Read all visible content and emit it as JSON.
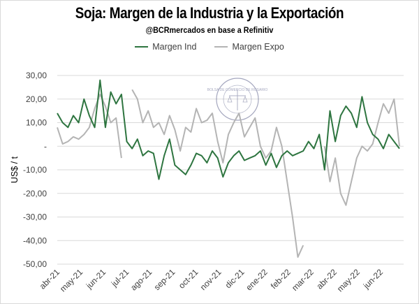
{
  "chart_data": {
    "type": "line",
    "title": "Soja: Margen de la Industria y la Exportación",
    "subtitle": "@BCRmercados en base a Refinitiv",
    "xlabel": "",
    "ylabel": "US$ / t",
    "ylim": [
      -50,
      30
    ],
    "yticks": [
      30,
      20,
      10,
      0,
      -10,
      -20,
      -30,
      -40,
      -50
    ],
    "ytick_labels": [
      "30,00",
      "20,00",
      "10,00",
      "-",
      "-10,00",
      "-20,00",
      "-30,00",
      "-40,00",
      "-50,00"
    ],
    "xtick_labels": [
      "abr-21",
      "may-21",
      "jun-21",
      "jul-21",
      "ago-21",
      "sep-21",
      "oct-21",
      "nov-21",
      "dic-21",
      "ene-22",
      "feb-22",
      "mar-22",
      "abr-22",
      "may-22",
      "jun-22"
    ],
    "x_unit": "week index from start of abr-21",
    "grid": "horizontal",
    "legend_position": "top",
    "watermark": "BOLSA DE COMERCIO DE ROSARIO",
    "series": [
      {
        "name": "Margen Ind",
        "color": "#2e7540",
        "values": [
          14,
          10,
          8,
          13,
          10,
          20,
          13,
          8,
          28,
          8,
          23,
          18,
          22,
          2,
          -1,
          3,
          -4,
          -2,
          -3,
          -14,
          -4,
          3,
          -8,
          -10,
          -12,
          -8,
          -3,
          -4,
          -7,
          -2,
          -5,
          -13,
          -7,
          -4,
          -2,
          -6,
          -5,
          -4,
          -2,
          -8,
          -3,
          -9,
          -4,
          -2,
          -4,
          -3,
          -2,
          2,
          -1,
          5,
          -10,
          15,
          2,
          13,
          17,
          14,
          8,
          21,
          10,
          5,
          3,
          -1,
          5,
          2,
          -1
        ]
      },
      {
        "name": "Margen Expo",
        "color": "#b4b4b4",
        "values": [
          8,
          1,
          2,
          4,
          3,
          5,
          8,
          16,
          22,
          17,
          10,
          12,
          -5,
          null,
          24,
          20,
          10,
          15,
          8,
          10,
          5,
          13,
          7,
          -2,
          8,
          6,
          16,
          10,
          11,
          14,
          2,
          -7,
          5,
          10,
          14,
          4,
          8,
          12,
          0,
          -5,
          -2,
          8,
          0,
          -15,
          -30,
          -47,
          -42,
          null,
          null,
          null,
          0,
          -15,
          -5,
          -20,
          -25,
          -15,
          -5,
          0,
          -2,
          1,
          10,
          18,
          14,
          20,
          0
        ]
      }
    ]
  }
}
